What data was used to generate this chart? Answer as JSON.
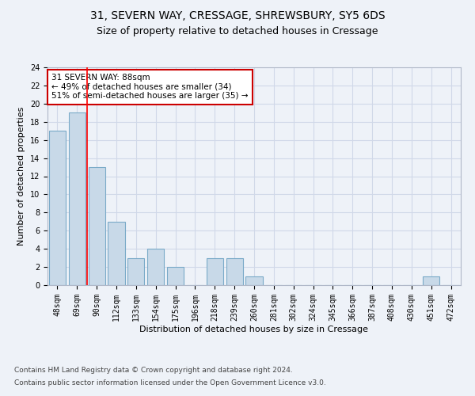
{
  "title_line1": "31, SEVERN WAY, CRESSAGE, SHREWSBURY, SY5 6DS",
  "title_line2": "Size of property relative to detached houses in Cressage",
  "xlabel": "Distribution of detached houses by size in Cressage",
  "ylabel": "Number of detached properties",
  "categories": [
    "48sqm",
    "69sqm",
    "90sqm",
    "112sqm",
    "133sqm",
    "154sqm",
    "175sqm",
    "196sqm",
    "218sqm",
    "239sqm",
    "260sqm",
    "281sqm",
    "302sqm",
    "324sqm",
    "345sqm",
    "366sqm",
    "387sqm",
    "408sqm",
    "430sqm",
    "451sqm",
    "472sqm"
  ],
  "values": [
    17,
    19,
    13,
    7,
    3,
    4,
    2,
    0,
    3,
    3,
    1,
    0,
    0,
    0,
    0,
    0,
    0,
    0,
    0,
    1,
    0
  ],
  "bar_color": "#c8d9e8",
  "bar_edge_color": "#7aaac8",
  "grid_color": "#d0d8e8",
  "background_color": "#eef2f8",
  "annotation_box_text": "31 SEVERN WAY: 88sqm\n← 49% of detached houses are smaller (34)\n51% of semi-detached houses are larger (35) →",
  "annotation_box_color": "#ffffff",
  "annotation_box_edge_color": "#cc0000",
  "red_line_x": 1.5,
  "ylim": [
    0,
    24
  ],
  "yticks": [
    0,
    2,
    4,
    6,
    8,
    10,
    12,
    14,
    16,
    18,
    20,
    22,
    24
  ],
  "footer_line1": "Contains HM Land Registry data © Crown copyright and database right 2024.",
  "footer_line2": "Contains public sector information licensed under the Open Government Licence v3.0.",
  "title_fontsize": 10,
  "subtitle_fontsize": 9,
  "axis_label_fontsize": 8,
  "tick_fontsize": 7,
  "annotation_fontsize": 7.5,
  "footer_fontsize": 6.5
}
